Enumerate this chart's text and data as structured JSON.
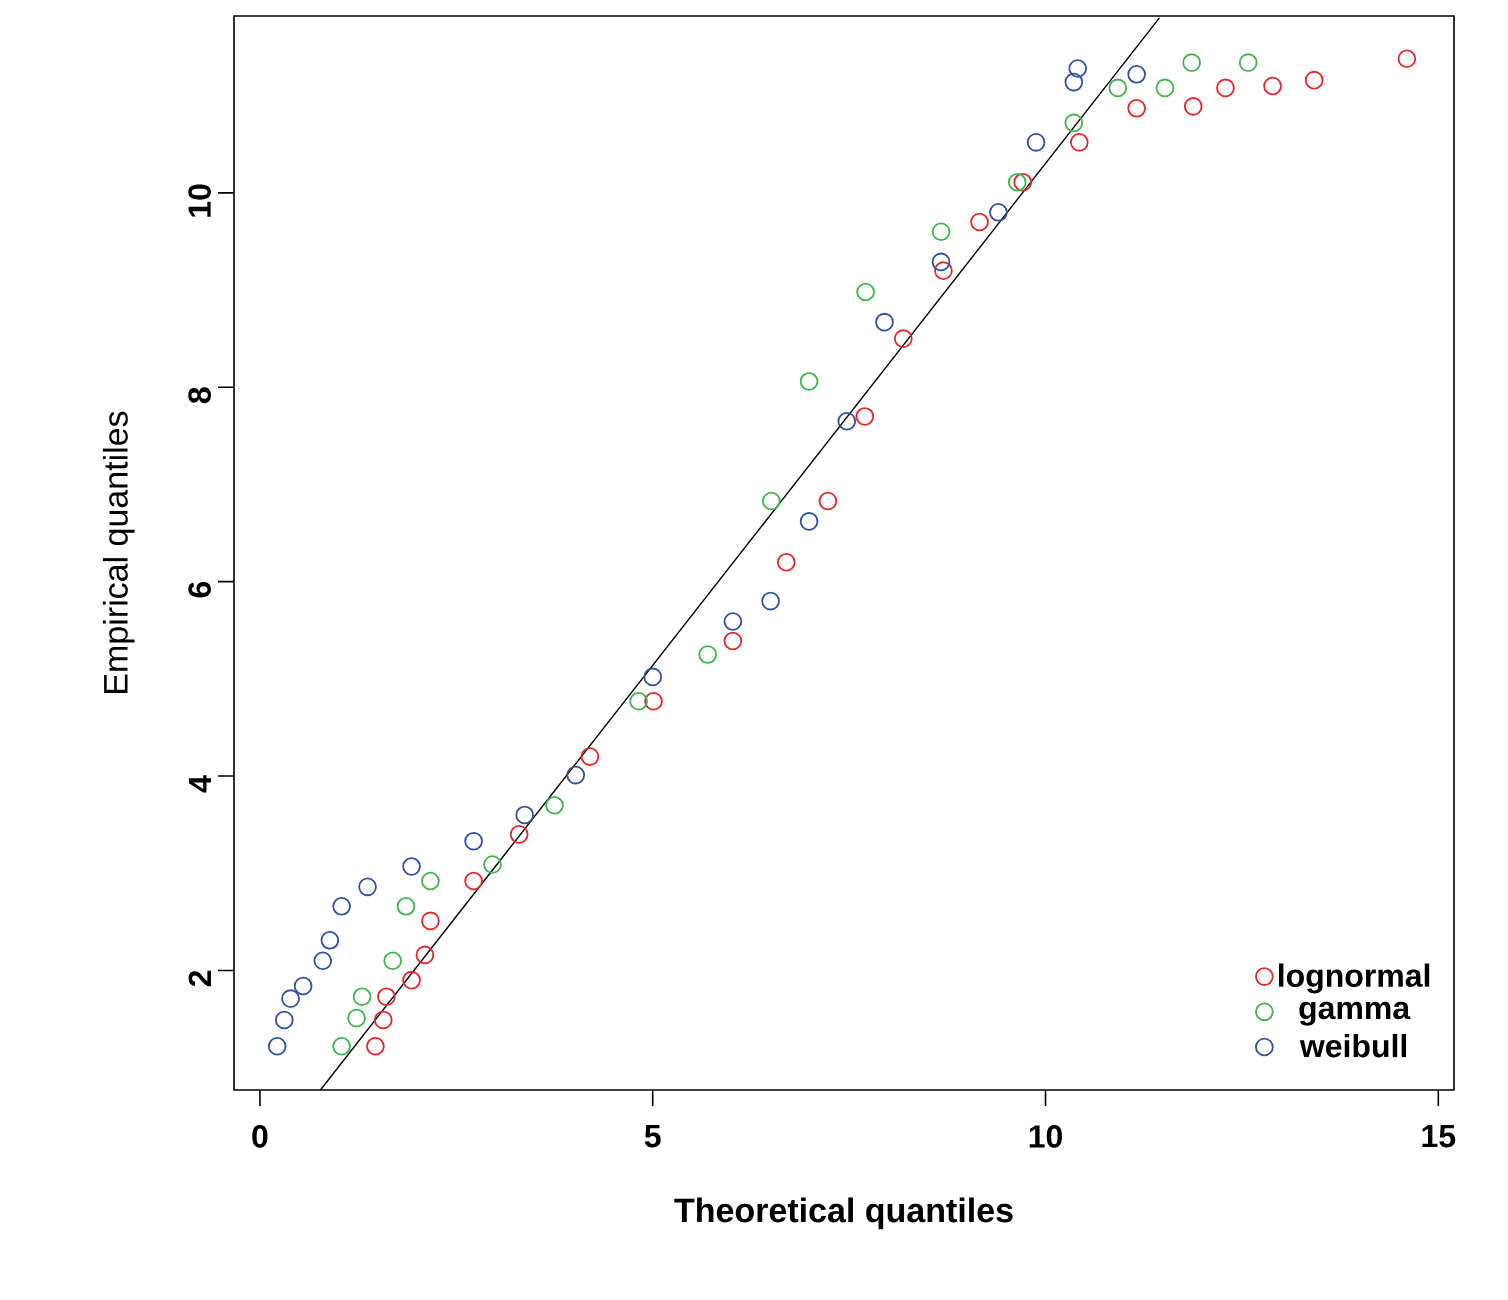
{
  "chart_data": {
    "type": "scatter",
    "xlabel": "Theoretical quantiles",
    "ylabel": "Empirical quantiles",
    "xlim": [
      -0.33,
      15.2
    ],
    "ylim": [
      0.77,
      11.82
    ],
    "xticks": [
      0,
      5,
      10,
      15
    ],
    "yticks": [
      2,
      4,
      6,
      8,
      10
    ],
    "legend": "bottom right",
    "marker": "circle",
    "grid": false,
    "series": [
      {
        "name": "lognormal",
        "color": "#e8262a",
        "x": [
          1.47,
          1.57,
          1.61,
          1.93,
          2.1,
          2.17,
          2.72,
          3.3,
          4.2,
          5.01,
          6.02,
          6.7,
          7.23,
          7.7,
          8.19,
          8.7,
          9.16,
          9.71,
          10.43,
          11.16,
          11.88,
          12.29,
          12.89,
          13.42,
          14.6
        ],
        "values": [
          1.22,
          1.49,
          1.73,
          1.9,
          2.16,
          2.51,
          2.92,
          3.4,
          4.2,
          4.77,
          5.39,
          6.2,
          6.83,
          7.7,
          8.5,
          9.2,
          9.7,
          10.11,
          10.52,
          10.87,
          10.89,
          11.08,
          11.1,
          11.16,
          11.38
        ]
      },
      {
        "name": "gamma",
        "color": "#3cb54a",
        "x": [
          1.04,
          1.23,
          1.3,
          1.69,
          1.86,
          2.17,
          2.96,
          3.75,
          4.82,
          5.7,
          6.51,
          6.99,
          7.71,
          8.67,
          9.64,
          10.36,
          10.92,
          11.52,
          11.86,
          12.58
        ],
        "values": [
          1.22,
          1.51,
          1.73,
          2.1,
          2.66,
          2.92,
          3.09,
          3.7,
          4.77,
          5.25,
          6.83,
          8.06,
          8.98,
          9.6,
          10.11,
          10.72,
          11.08,
          11.08,
          11.34,
          11.34
        ]
      },
      {
        "name": "weibull",
        "color": "#3050a0",
        "x": [
          0.22,
          0.31,
          0.39,
          0.55,
          0.8,
          0.89,
          1.04,
          1.37,
          1.93,
          2.72,
          3.37,
          4.02,
          5.0,
          6.02,
          6.5,
          6.99,
          7.47,
          7.95,
          8.67,
          9.4,
          9.88,
          10.36,
          10.41,
          11.16
        ],
        "values": [
          1.22,
          1.49,
          1.71,
          1.84,
          2.1,
          2.31,
          2.66,
          2.86,
          3.07,
          3.33,
          3.6,
          4.01,
          5.02,
          5.59,
          5.8,
          6.62,
          7.65,
          8.67,
          9.29,
          9.8,
          10.52,
          11.14,
          11.28,
          11.22
        ]
      },
      {
        "type": "line",
        "color": "#000000",
        "marker": "none",
        "x": [
          0.77,
          11.45
        ],
        "values": [
          0.77,
          11.8
        ]
      }
    ]
  }
}
